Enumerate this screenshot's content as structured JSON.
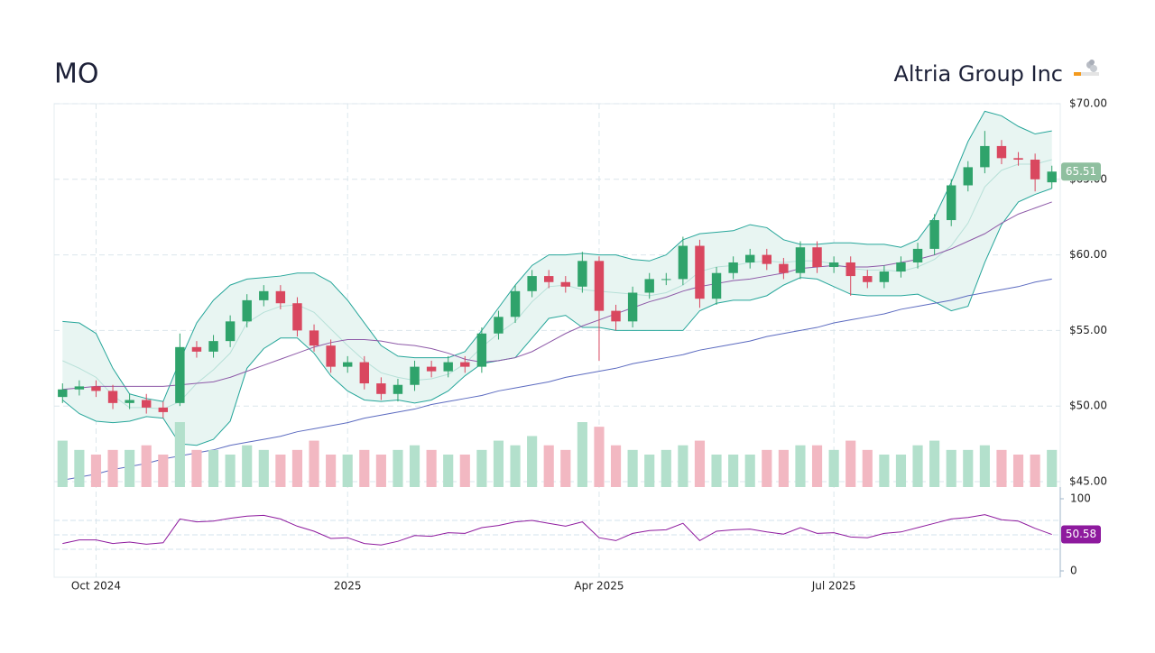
{
  "chart_data": {
    "type": "candlestick",
    "title": "MO",
    "subtitle": "Altria Group Inc",
    "categories": [
      null,
      null,
      "Oct 2024",
      null,
      null,
      null,
      null,
      null,
      null,
      null,
      null,
      null,
      null,
      null,
      null,
      null,
      null,
      "2025",
      null,
      null,
      null,
      null,
      null,
      null,
      null,
      null,
      null,
      null,
      null,
      null,
      null,
      null,
      "Apr 2025",
      null,
      null,
      null,
      null,
      null,
      null,
      null,
      null,
      null,
      null,
      null,
      null,
      null,
      "Jul 2025",
      null,
      null,
      null,
      null,
      null,
      null,
      null,
      null,
      null,
      null,
      null,
      null,
      null
    ],
    "open": [
      50.6,
      51.1,
      51.3,
      51.0,
      50.2,
      50.4,
      49.9,
      50.2,
      53.9,
      53.6,
      54.3,
      55.6,
      57.0,
      57.6,
      56.8,
      55.0,
      54.0,
      52.6,
      52.9,
      51.5,
      50.8,
      51.4,
      52.6,
      52.3,
      52.9,
      52.6,
      54.8,
      55.9,
      57.6,
      58.6,
      58.2,
      57.9,
      59.6,
      56.3,
      55.6,
      57.5,
      58.4,
      58.4,
      60.6,
      57.1,
      58.8,
      59.5,
      60.0,
      59.4,
      58.8,
      60.5,
      59.2,
      59.5,
      58.6,
      58.2,
      58.9,
      59.5,
      60.4,
      62.3,
      64.6,
      65.8,
      67.2,
      66.4,
      66.3,
      64.8
    ],
    "high": [
      51.5,
      51.7,
      51.7,
      51.4,
      50.8,
      50.8,
      50.3,
      54.8,
      54.3,
      54.7,
      56.0,
      57.4,
      58.0,
      58.0,
      57.2,
      55.4,
      54.4,
      53.3,
      53.3,
      51.9,
      51.8,
      53.0,
      53.0,
      53.3,
      53.3,
      55.2,
      56.3,
      58.0,
      59.0,
      59.0,
      58.6,
      60.2,
      59.9,
      56.7,
      57.9,
      58.8,
      58.8,
      61.2,
      61.0,
      59.2,
      59.9,
      60.4,
      60.4,
      59.8,
      60.9,
      60.9,
      59.9,
      59.9,
      59.0,
      59.3,
      59.9,
      60.8,
      62.7,
      65.0,
      66.2,
      68.2,
      67.6,
      66.8,
      66.7,
      65.9
    ],
    "low": [
      50.2,
      50.7,
      50.6,
      49.8,
      49.8,
      49.5,
      49.2,
      50.0,
      53.2,
      53.2,
      53.9,
      55.2,
      56.6,
      56.4,
      54.6,
      53.6,
      52.2,
      52.2,
      51.1,
      50.4,
      50.3,
      51.0,
      51.9,
      51.9,
      52.2,
      52.2,
      54.4,
      55.5,
      57.2,
      57.8,
      57.5,
      57.5,
      53.0,
      55.0,
      55.2,
      57.1,
      58.0,
      58.0,
      56.5,
      56.7,
      58.4,
      59.1,
      59.0,
      58.4,
      58.4,
      58.8,
      58.8,
      57.3,
      57.8,
      57.8,
      58.5,
      59.1,
      60.0,
      61.9,
      64.2,
      65.4,
      66.0,
      65.9,
      64.2,
      64.4
    ],
    "close": [
      51.1,
      51.3,
      51.0,
      50.2,
      50.4,
      49.9,
      49.6,
      53.9,
      53.6,
      54.3,
      55.6,
      57.0,
      57.6,
      56.8,
      55.0,
      54.0,
      52.6,
      52.9,
      51.5,
      50.8,
      51.4,
      52.6,
      52.3,
      52.9,
      52.6,
      54.8,
      55.9,
      57.6,
      58.6,
      58.2,
      57.9,
      59.6,
      56.3,
      55.6,
      57.5,
      58.4,
      58.4,
      60.6,
      57.1,
      58.8,
      59.5,
      60.0,
      59.4,
      58.8,
      60.5,
      59.2,
      59.5,
      58.6,
      58.2,
      58.9,
      59.5,
      60.4,
      62.3,
      64.6,
      65.8,
      67.2,
      66.4,
      66.3,
      65.0,
      65.51
    ],
    "up_color": "#2fa36b",
    "down_color": "#d9475f",
    "bollinger": {
      "color": "#26a69a",
      "fill": "#e8f5f2",
      "middle_color": "#b7e0d8",
      "upper": [
        55.6,
        55.5,
        54.8,
        52.5,
        50.8,
        50.5,
        50.3,
        53.0,
        55.5,
        57.0,
        58.0,
        58.4,
        58.5,
        58.6,
        58.8,
        58.8,
        58.2,
        57.0,
        55.5,
        54.0,
        53.3,
        53.2,
        53.2,
        53.2,
        53.6,
        55.0,
        56.5,
        58.0,
        59.3,
        60.0,
        60.0,
        60.1,
        60.0,
        60.0,
        59.7,
        59.6,
        60.0,
        61.0,
        61.4,
        61.5,
        61.6,
        62.0,
        61.8,
        61.0,
        60.7,
        60.7,
        60.8,
        60.8,
        60.7,
        60.7,
        60.5,
        61.0,
        62.5,
        64.8,
        67.5,
        69.5,
        69.2,
        68.5,
        68.0,
        68.2
      ],
      "middle": [
        53.0,
        52.5,
        51.9,
        50.7,
        49.9,
        49.9,
        49.8,
        50.3,
        51.5,
        52.4,
        53.5,
        55.5,
        56.2,
        56.6,
        56.7,
        56.2,
        55.1,
        54.0,
        53.0,
        52.2,
        51.9,
        51.7,
        51.8,
        52.1,
        52.8,
        53.9,
        54.8,
        55.6,
        56.9,
        57.9,
        58.0,
        57.7,
        57.6,
        57.5,
        57.4,
        57.3,
        57.5,
        58.0,
        58.9,
        59.2,
        59.3,
        59.5,
        59.6,
        59.5,
        59.6,
        59.6,
        59.4,
        59.1,
        59.0,
        59.0,
        58.9,
        59.2,
        59.7,
        60.6,
        62.1,
        64.5,
        65.6,
        66.0,
        66.0,
        66.3
      ],
      "lower": [
        50.4,
        49.5,
        49.0,
        48.9,
        49.0,
        49.3,
        49.2,
        47.5,
        47.4,
        47.8,
        49.0,
        52.5,
        53.8,
        54.5,
        54.5,
        53.5,
        52.0,
        51.0,
        50.4,
        50.3,
        50.4,
        50.2,
        50.4,
        51.0,
        52.0,
        52.8,
        53.0,
        53.2,
        54.5,
        55.8,
        56.0,
        55.2,
        55.2,
        55.0,
        55.0,
        55.0,
        55.0,
        55.0,
        56.3,
        56.8,
        57.0,
        57.0,
        57.3,
        58.0,
        58.5,
        58.4,
        57.9,
        57.4,
        57.3,
        57.3,
        57.3,
        57.4,
        56.9,
        56.3,
        56.6,
        59.5,
        62.0,
        63.5,
        64.0,
        64.4
      ]
    },
    "moving_averages": [
      {
        "color": "#8e5aa8",
        "values": [
          51.1,
          51.2,
          51.3,
          51.3,
          51.3,
          51.3,
          51.3,
          51.4,
          51.5,
          51.6,
          51.9,
          52.3,
          52.7,
          53.1,
          53.5,
          53.9,
          54.2,
          54.4,
          54.4,
          54.3,
          54.1,
          54.0,
          53.8,
          53.5,
          53.1,
          52.9,
          53.0,
          53.2,
          53.6,
          54.2,
          54.8,
          55.3,
          55.7,
          56.1,
          56.5,
          56.9,
          57.2,
          57.6,
          57.9,
          58.1,
          58.3,
          58.4,
          58.6,
          58.8,
          59.1,
          59.2,
          59.3,
          59.2,
          59.2,
          59.3,
          59.5,
          59.7,
          60.0,
          60.4,
          60.9,
          61.4,
          62.1,
          62.7,
          63.1,
          63.5
        ]
      },
      {
        "color": "#5c6bc0",
        "values": [
          45.1,
          45.3,
          45.5,
          45.8,
          46.0,
          46.2,
          46.5,
          46.7,
          46.9,
          47.1,
          47.4,
          47.6,
          47.8,
          48.0,
          48.3,
          48.5,
          48.7,
          48.9,
          49.2,
          49.4,
          49.6,
          49.8,
          50.1,
          50.3,
          50.5,
          50.7,
          51.0,
          51.2,
          51.4,
          51.6,
          51.9,
          52.1,
          52.3,
          52.5,
          52.8,
          53.0,
          53.2,
          53.4,
          53.7,
          53.9,
          54.1,
          54.3,
          54.6,
          54.8,
          55.0,
          55.2,
          55.5,
          55.7,
          55.9,
          56.1,
          56.4,
          56.6,
          56.8,
          57.0,
          57.3,
          57.5,
          57.7,
          57.9,
          58.2,
          58.4
        ]
      }
    ],
    "volume": {
      "up_color": "#b3e0cc",
      "down_color": "#f2b8c2",
      "values": [
        10,
        8,
        7,
        8,
        8,
        9,
        7,
        14,
        8,
        8,
        7,
        9,
        8,
        7,
        8,
        10,
        7,
        7,
        8,
        7,
        8,
        9,
        8,
        7,
        7,
        8,
        10,
        9,
        11,
        9,
        8,
        14,
        13,
        9,
        8,
        7,
        8,
        9,
        10,
        7,
        7,
        7,
        8,
        8,
        9,
        9,
        8,
        10,
        8,
        7,
        7,
        9,
        10,
        8,
        8,
        9,
        8,
        7,
        7,
        8
      ]
    },
    "ylim": [
      45,
      70
    ],
    "yticks": [
      {
        "value": 45,
        "label": "$45.00"
      },
      {
        "value": 50,
        "label": "$50.00"
      },
      {
        "value": 55,
        "label": "$55.00"
      },
      {
        "value": 60,
        "label": "$60.00"
      },
      {
        "value": 65,
        "label": "$65.00"
      },
      {
        "value": 70,
        "label": "$70.00"
      }
    ],
    "grid": true,
    "price_badge_color": "#8fbf9f",
    "rsi": {
      "color": "#8e1a9e",
      "badge_color": "#8e1a9e",
      "ylim": [
        0,
        100
      ],
      "yticks": [
        0,
        100
      ],
      "guides": [
        30,
        50,
        70
      ],
      "values": [
        38,
        43,
        43,
        38,
        40,
        37,
        39,
        72,
        68,
        69,
        73,
        76,
        77,
        72,
        62,
        55,
        45,
        46,
        38,
        36,
        41,
        49,
        48,
        53,
        52,
        60,
        63,
        68,
        70,
        66,
        62,
        68,
        46,
        42,
        52,
        56,
        57,
        66,
        42,
        55,
        57,
        58,
        54,
        51,
        60,
        52,
        53,
        47,
        46,
        52,
        54,
        60,
        66,
        72,
        74,
        78,
        71,
        69,
        59,
        50.58
      ]
    }
  }
}
